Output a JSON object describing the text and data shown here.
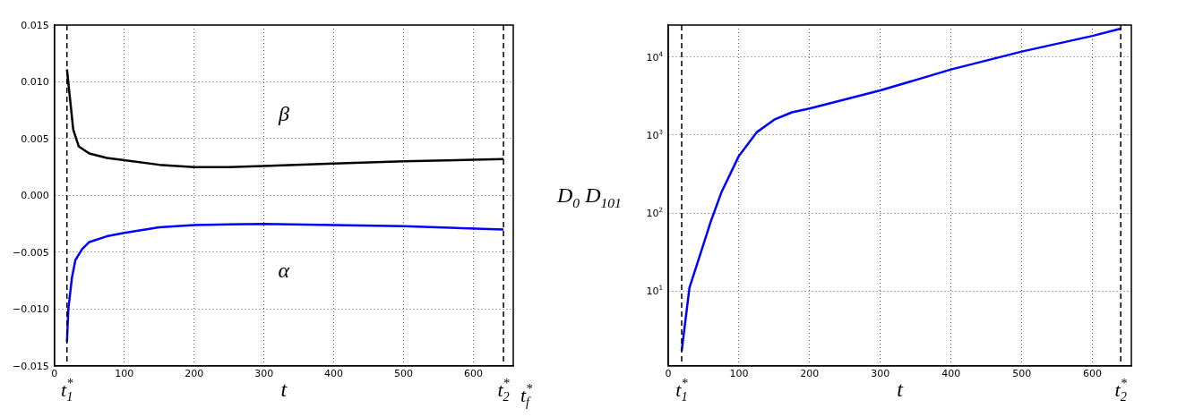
{
  "chart_data": [
    {
      "type": "line",
      "xlabel": "t",
      "xlim": [
        0,
        657
      ],
      "xticks": [
        0,
        100,
        200,
        300,
        400,
        500,
        600
      ],
      "ylim": [
        -0.015,
        0.015
      ],
      "yticks": [
        {
          "value": -0.015,
          "label": "−0.015"
        },
        {
          "value": -0.01,
          "label": "−0.010"
        },
        {
          "value": -0.005,
          "label": "−0.005"
        },
        {
          "value": 0,
          "label": "0.000"
        },
        {
          "value": 0.005,
          "label": "0.005"
        },
        {
          "value": 0.01,
          "label": "0.010"
        },
        {
          "value": 0.015,
          "label": "0.015"
        }
      ],
      "grid": true,
      "legend": false,
      "marker": "none",
      "x": [
        18,
        27,
        35,
        50,
        75,
        100,
        150,
        200,
        250,
        300,
        400,
        500,
        643
      ],
      "series": [
        {
          "name": "β",
          "color": "#000000",
          "values": [
            0.0111,
            0.0058,
            0.0043,
            0.0037,
            0.0033,
            0.0031,
            0.0027,
            0.0025,
            0.0025,
            0.0026,
            0.0028,
            0.003,
            0.0032
          ]
        },
        {
          "name": "α",
          "color": "#0000ff",
          "x": [
            18,
            20,
            25,
            30,
            40,
            50,
            75,
            100,
            150,
            200,
            300,
            400,
            500,
            643
          ],
          "values": [
            -0.0129,
            -0.01,
            -0.0073,
            -0.0057,
            -0.0047,
            -0.0041,
            -0.0036,
            -0.0033,
            -0.0028,
            -0.0026,
            -0.0025,
            -0.0026,
            -0.0027,
            -0.003
          ]
        }
      ],
      "ref_lines": [
        {
          "axis": "x",
          "value": 18,
          "label": "t$_{1}$$^{*}$",
          "line_style": "dashed",
          "color": "#000000"
        },
        {
          "axis": "x",
          "value": 643,
          "label": "t$_{2}$$^{*}$",
          "line_style": "dashed",
          "color": "#000000"
        }
      ],
      "annotations": [
        "t$_{f}$$^{*}$"
      ]
    },
    {
      "type": "line",
      "xlabel": "t",
      "ylabel": "D$_{0}$ D$_{101}$",
      "log": "y",
      "xlim": [
        0,
        655
      ],
      "xticks": [
        0,
        100,
        200,
        300,
        400,
        500,
        600
      ],
      "ylim": [
        1.1,
        25600
      ],
      "yticks": [
        {
          "value": 10,
          "label": "10$^{1}$"
        },
        {
          "value": 100,
          "label": "10$^{2}$"
        },
        {
          "value": 1000,
          "label": "10$^{3}$"
        },
        {
          "value": 10000,
          "label": "10$^{4}$"
        }
      ],
      "grid": true,
      "legend": false,
      "marker": "none",
      "x": [
        19,
        30,
        50,
        60,
        75,
        100,
        125,
        150,
        175,
        200,
        300,
        400,
        500,
        600,
        640
      ],
      "series": [
        {
          "color": "#0000ff",
          "values": [
            1.7,
            11,
            40,
            77,
            182,
            540,
            1080,
            1570,
            1950,
            2180,
            3720,
            6900,
            11700,
            18600,
            23000
          ]
        }
      ],
      "ref_lines": [
        {
          "axis": "x",
          "value": 19,
          "label": "t$_{1}$$^{*}$",
          "line_style": "dashed",
          "color": "#000000"
        },
        {
          "axis": "x",
          "value": 640,
          "label": "t$_{2}$$^{*}$",
          "line_style": "dashed",
          "color": "#000000"
        }
      ]
    }
  ]
}
